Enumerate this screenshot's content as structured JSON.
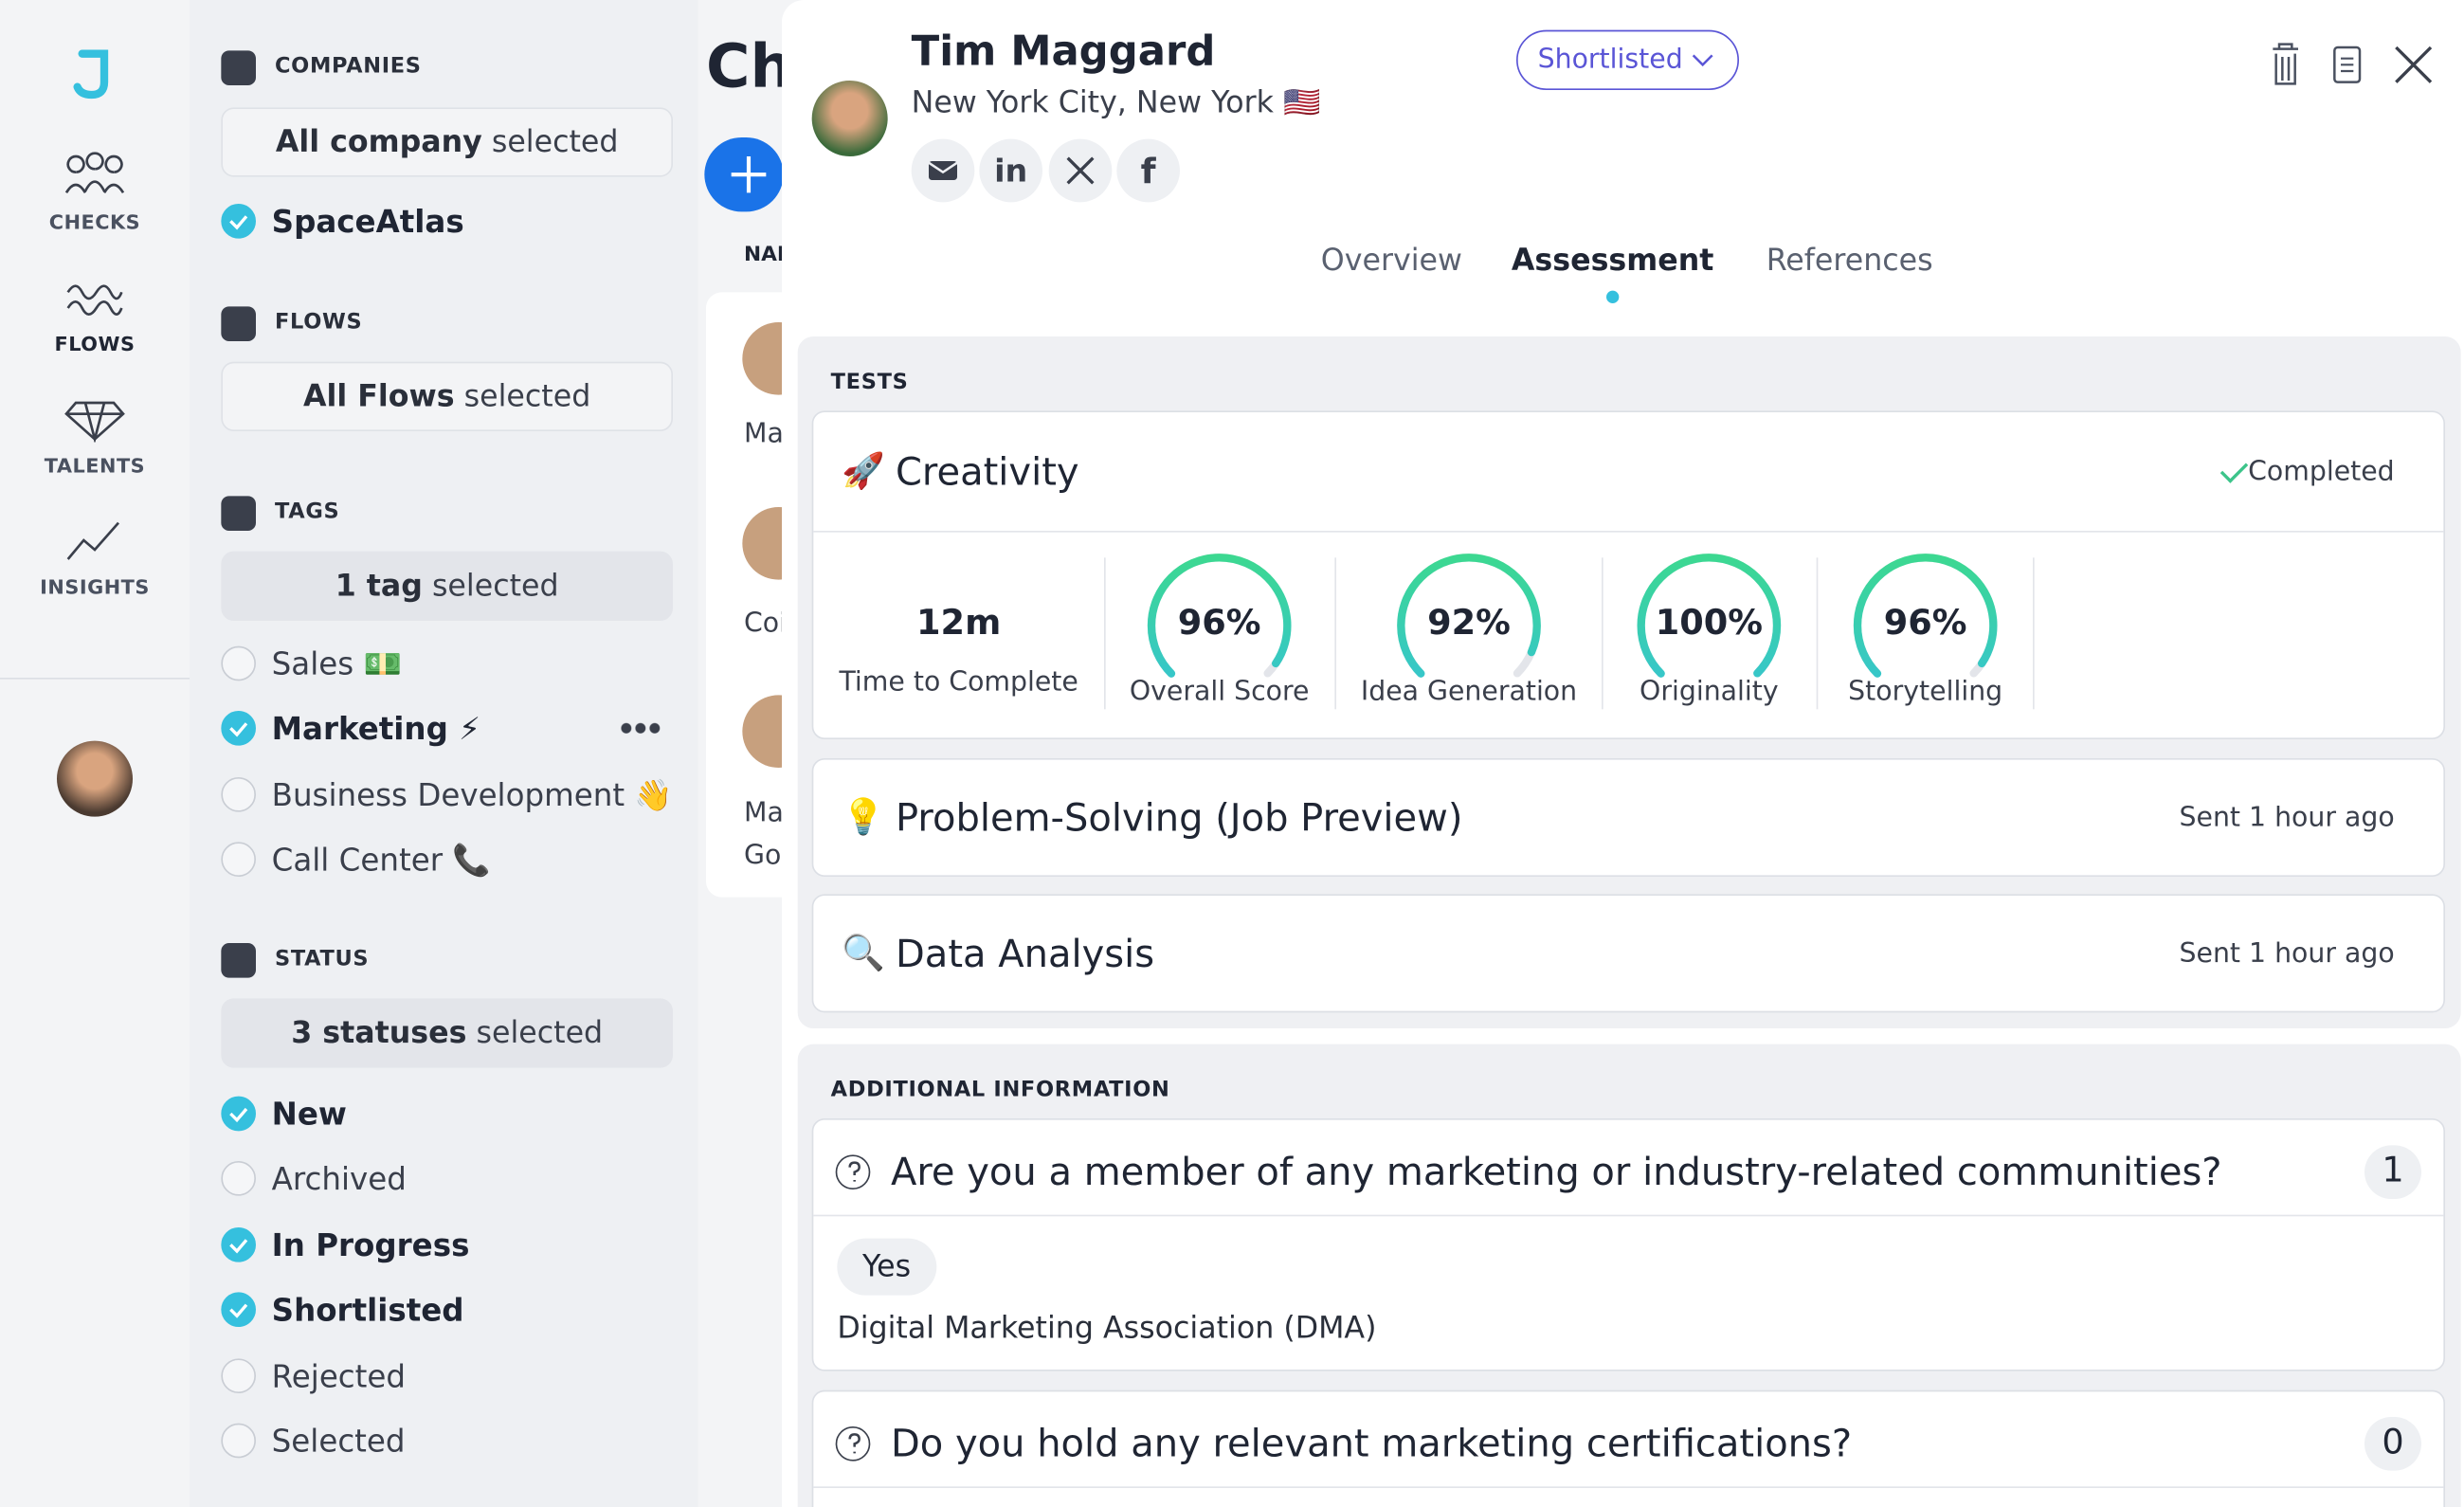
{
  "nav": {
    "items": [
      "CHECKS",
      "FLOWS",
      "TALENTS",
      "INSIGHTS"
    ]
  },
  "filters": [
    {
      "title": "COMPANIES",
      "selector": {
        "bold": "All company",
        "rest": "selected"
      },
      "options": [
        {
          "label": "SpaceAtlas",
          "checked": true
        }
      ]
    },
    {
      "title": "FLOWS",
      "selector": {
        "bold": "All Flows",
        "rest": "selected"
      },
      "options": []
    },
    {
      "title": "TAGS",
      "selector": {
        "bold": "1 tag",
        "rest": "selected"
      },
      "options": [
        {
          "label": "Sales 💵",
          "checked": false
        },
        {
          "label": "Marketing ⚡",
          "checked": true
        },
        {
          "label": "Business Development 👋",
          "checked": false
        },
        {
          "label": "Call Center 📞",
          "checked": false
        }
      ]
    },
    {
      "title": "STATUS",
      "selector": {
        "bold": "3 statuses",
        "rest": "selected"
      },
      "options": [
        {
          "label": "New",
          "checked": true
        },
        {
          "label": "Archived",
          "checked": false
        },
        {
          "label": "In Progress",
          "checked": true
        },
        {
          "label": "Shortlisted",
          "checked": true
        },
        {
          "label": "Rejected",
          "checked": false
        },
        {
          "label": "Selected",
          "checked": false
        }
      ]
    }
  ],
  "background": {
    "heading": "Ch",
    "column": "NAI",
    "rows": [
      "Ma",
      "Coi",
      "Ma",
      "Go"
    ]
  },
  "profile": {
    "name": "Tim Maggard",
    "location": "New York City, New York 🇺🇸",
    "status": "Shortlisted"
  },
  "tabs": {
    "items": [
      "Overview",
      "Assessment",
      "References"
    ],
    "active": 1
  },
  "tests": {
    "title": "TESTS",
    "items": [
      {
        "icon": "🚀",
        "name": "Creativity",
        "status": "Completed",
        "time": "12m",
        "time_label": "Time to Complete",
        "scores": [
          {
            "value": 96,
            "label": "96%",
            "name": "Overall Score"
          },
          {
            "value": 92,
            "label": "92%",
            "name": "Idea Generation"
          },
          {
            "value": 100,
            "label": "100%",
            "name": "Originality"
          },
          {
            "value": 96,
            "label": "96%",
            "name": "Storytelling"
          }
        ]
      },
      {
        "icon": "💡",
        "name": "Problem-Solving (Job Preview)",
        "status": "Sent 1 hour ago"
      },
      {
        "icon": "🔍",
        "name": "Data Analysis",
        "status": "Sent 1 hour ago"
      }
    ]
  },
  "additional": {
    "title": "ADDITIONAL INFORMATION",
    "questions": [
      {
        "question": "Are you a member of any marketing or industry-related communities?",
        "count": 1,
        "answer": "Yes",
        "detail": "Digital Marketing Association (DMA)"
      },
      {
        "question": "Do you hold any relevant marketing certifications?",
        "count": 0
      }
    ]
  }
}
